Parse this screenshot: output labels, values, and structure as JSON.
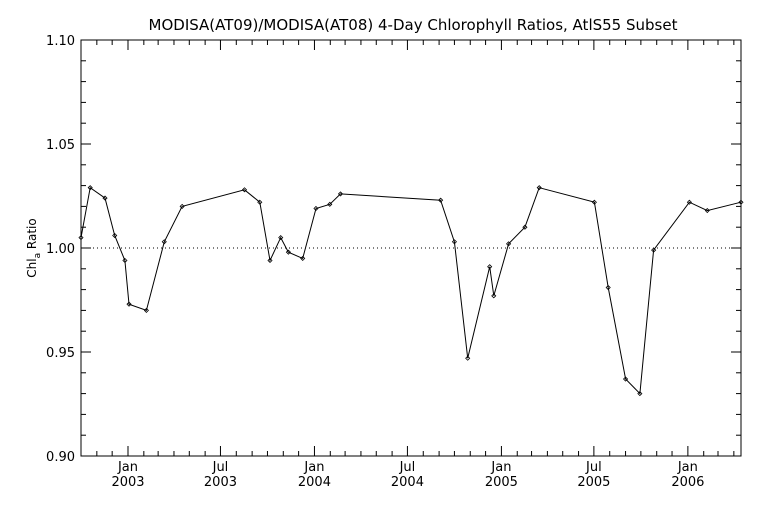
{
  "chart_data": {
    "type": "line",
    "title": "MODISA(AT09)/MODISA(AT08) 4-Day Chlorophyll Ratios, AtlS55 Subset",
    "ylabel": {
      "main": "Chl",
      "sub": "a",
      "rest": " Ratio"
    },
    "xlabel": "",
    "ylim": [
      0.9,
      1.1
    ],
    "xlim": [
      "2002-10-01",
      "2006-04-15"
    ],
    "y_ticks": [
      {
        "value": 0.9,
        "label": "0.90"
      },
      {
        "value": 0.95,
        "label": "0.95"
      },
      {
        "value": 1.0,
        "label": "1.00"
      },
      {
        "value": 1.05,
        "label": "1.05"
      },
      {
        "value": 1.1,
        "label": "1.10"
      }
    ],
    "x_ticks": [
      {
        "date": "2003-01-01",
        "month": "Jan",
        "year": "2003"
      },
      {
        "date": "2003-07-01",
        "month": "Jul",
        "year": "2003"
      },
      {
        "date": "2004-01-01",
        "month": "Jan",
        "year": "2004"
      },
      {
        "date": "2004-07-01",
        "month": "Jul",
        "year": "2004"
      },
      {
        "date": "2005-01-01",
        "month": "Jan",
        "year": "2005"
      },
      {
        "date": "2005-07-01",
        "month": "Jul",
        "year": "2005"
      },
      {
        "date": "2006-01-01",
        "month": "Jan",
        "year": "2006"
      }
    ],
    "reference_line": 1.0,
    "grid": false,
    "series": [
      {
        "x": [
          "2002-10-01",
          "2002-10-19",
          "2002-11-17",
          "2002-12-06",
          "2002-12-26",
          "2003-01-03",
          "2003-02-06",
          "2003-03-13",
          "2003-04-17",
          "2003-08-17",
          "2003-09-16",
          "2003-10-06",
          "2003-10-27",
          "2003-11-11",
          "2003-12-09",
          "2004-01-04",
          "2004-01-31",
          "2004-02-21",
          "2004-09-04",
          "2004-10-01",
          "2004-10-27",
          "2004-12-09",
          "2004-12-17",
          "2005-01-15",
          "2005-02-16",
          "2005-03-16",
          "2005-07-02",
          "2005-07-29",
          "2005-09-01",
          "2005-09-29",
          "2005-10-26",
          "2006-01-04",
          "2006-02-08",
          "2006-04-15"
        ],
        "y": [
          1.005,
          1.029,
          1.024,
          1.006,
          0.994,
          0.973,
          0.97,
          1.003,
          1.02,
          1.028,
          1.022,
          0.994,
          1.005,
          0.998,
          0.995,
          1.019,
          1.021,
          1.026,
          1.023,
          1.003,
          0.947,
          0.991,
          0.977,
          1.002,
          1.01,
          1.029,
          1.022,
          0.981,
          0.937,
          0.93,
          0.999,
          1.022,
          1.018,
          1.022
        ]
      }
    ]
  }
}
